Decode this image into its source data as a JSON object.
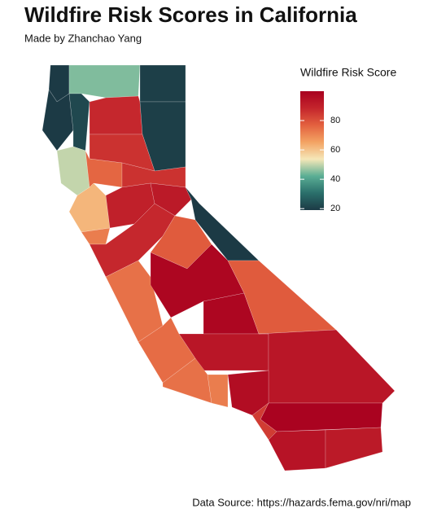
{
  "chart_data": {
    "type": "choropleth",
    "title": "Wildfire Risk Scores in California",
    "subtitle": "Made by Zhanchao Yang",
    "caption": "Data Source: https://hazards.fema.gov/nri/map",
    "legend_title": "Wildfire Risk Score",
    "values": [
      18,
      45,
      20,
      18,
      22,
      88,
      20,
      50,
      86,
      76,
      86,
      62,
      90,
      92,
      72,
      88,
      18,
      78,
      74,
      98,
      98,
      78,
      75,
      93,
      93,
      74,
      72,
      96,
      99,
      84,
      94,
      92
    ],
    "colorbar": {
      "lim": [
        19,
        100
      ],
      "ticks": [
        20,
        40,
        60,
        80
      ],
      "colors": [
        "#1c3a45",
        "#2a6f6b",
        "#5aae94",
        "#f5e7b8",
        "#f3a363",
        "#e3613f",
        "#c4252c",
        "#a8001f"
      ]
    }
  }
}
